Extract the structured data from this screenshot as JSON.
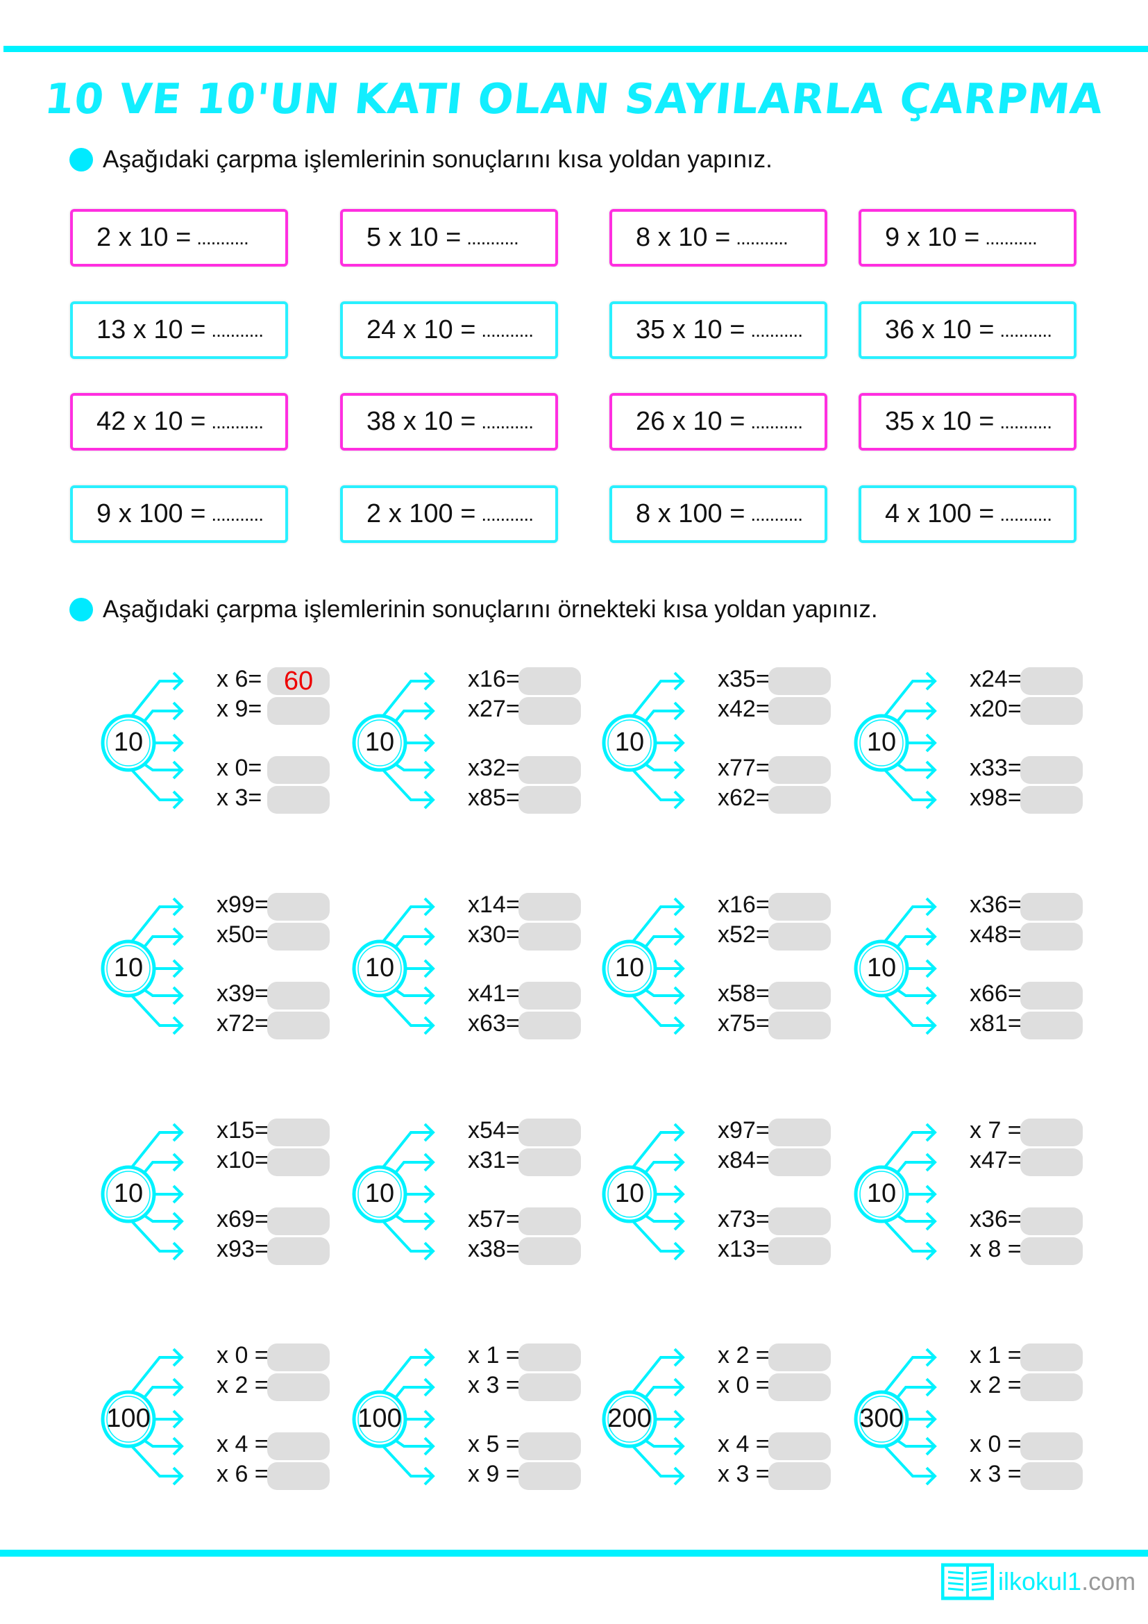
{
  "title": "10 VE 10'UN KATI OLAN SAYILARLA ÇARPMA",
  "instruction1": "Aşağıdaki çarpma işlemlerinin sonuçlarını kısa yoldan yapınız.",
  "instruction2": "Aşağıdaki çarpma işlemlerinin sonuçlarını örnekteki kısa yoldan yapınız.",
  "blank": "...........",
  "colors": {
    "cyan": "#00f2ff",
    "pink": "#ff2fe0",
    "answer": "#e00000"
  },
  "boxes": [
    [
      "2 x 10 =",
      "5 x 10 =",
      "8 x 10 =",
      "9 x 10 ="
    ],
    [
      "13 x 10 =",
      "24 x 10 =",
      "35 x 10 =",
      "36 x 10 ="
    ],
    [
      "42 x 10 =",
      "38 x 10 =",
      "26 x 10 =",
      "35 x 10 ="
    ],
    [
      "9 x 100 =",
      "2 x 100 =",
      "8 x 100 =",
      "4 x 100 ="
    ]
  ],
  "trees": [
    [
      {
        "c": "10",
        "items": [
          "x  6=",
          "x  9=",
          "x  0=",
          "x  3="
        ],
        "answers": [
          "60",
          "",
          "",
          ""
        ]
      },
      {
        "c": "10",
        "items": [
          "x16=",
          "x27=",
          "x32=",
          "x85="
        ],
        "answers": [
          "",
          "",
          "",
          ""
        ]
      },
      {
        "c": "10",
        "items": [
          "x35=",
          "x42=",
          "x77=",
          "x62="
        ],
        "answers": [
          "",
          "",
          "",
          ""
        ]
      },
      {
        "c": "10",
        "items": [
          "x24=",
          "x20=",
          "x33=",
          "x98="
        ],
        "answers": [
          "",
          "",
          "",
          ""
        ]
      }
    ],
    [
      {
        "c": "10",
        "items": [
          "x99=",
          "x50=",
          "x39=",
          "x72="
        ],
        "answers": [
          "",
          "",
          "",
          ""
        ]
      },
      {
        "c": "10",
        "items": [
          "x14=",
          "x30=",
          "x41=",
          "x63="
        ],
        "answers": [
          "",
          "",
          "",
          ""
        ]
      },
      {
        "c": "10",
        "items": [
          "x16=",
          "x52=",
          "x58=",
          "x75="
        ],
        "answers": [
          "",
          "",
          "",
          ""
        ]
      },
      {
        "c": "10",
        "items": [
          "x36=",
          "x48=",
          "x66=",
          "x81="
        ],
        "answers": [
          "",
          "",
          "",
          ""
        ]
      }
    ],
    [
      {
        "c": "10",
        "items": [
          "x15=",
          "x10=",
          "x69=",
          "x93="
        ],
        "answers": [
          "",
          "",
          "",
          ""
        ]
      },
      {
        "c": "10",
        "items": [
          "x54=",
          "x31=",
          "x57=",
          "x38="
        ],
        "answers": [
          "",
          "",
          "",
          ""
        ]
      },
      {
        "c": "10",
        "items": [
          "x97=",
          "x84=",
          "x73=",
          "x13="
        ],
        "answers": [
          "",
          "",
          "",
          ""
        ]
      },
      {
        "c": "10",
        "items": [
          "x 7 =",
          "x47=",
          "x36=",
          "x 8 ="
        ],
        "answers": [
          "",
          "",
          "",
          ""
        ]
      }
    ],
    [
      {
        "c": "100",
        "items": [
          "x 0 =",
          "x 2 =",
          "x 4 =",
          "x 6 ="
        ],
        "answers": [
          "",
          "",
          "",
          ""
        ]
      },
      {
        "c": "100",
        "items": [
          "x 1 =",
          "x 3 =",
          "x 5 =",
          "x 9 ="
        ],
        "answers": [
          "",
          "",
          "",
          ""
        ]
      },
      {
        "c": "200",
        "items": [
          "x 2 =",
          "x 0 =",
          "x 4 =",
          "x 3 ="
        ],
        "answers": [
          "",
          "",
          "",
          ""
        ]
      },
      {
        "c": "300",
        "items": [
          "x 1 =",
          "x 2 =",
          "x 0 =",
          "x 3 ="
        ],
        "answers": [
          "",
          "",
          "",
          ""
        ]
      }
    ]
  ],
  "logo": {
    "brand": "ilkokul1",
    "suffix": ".com"
  }
}
